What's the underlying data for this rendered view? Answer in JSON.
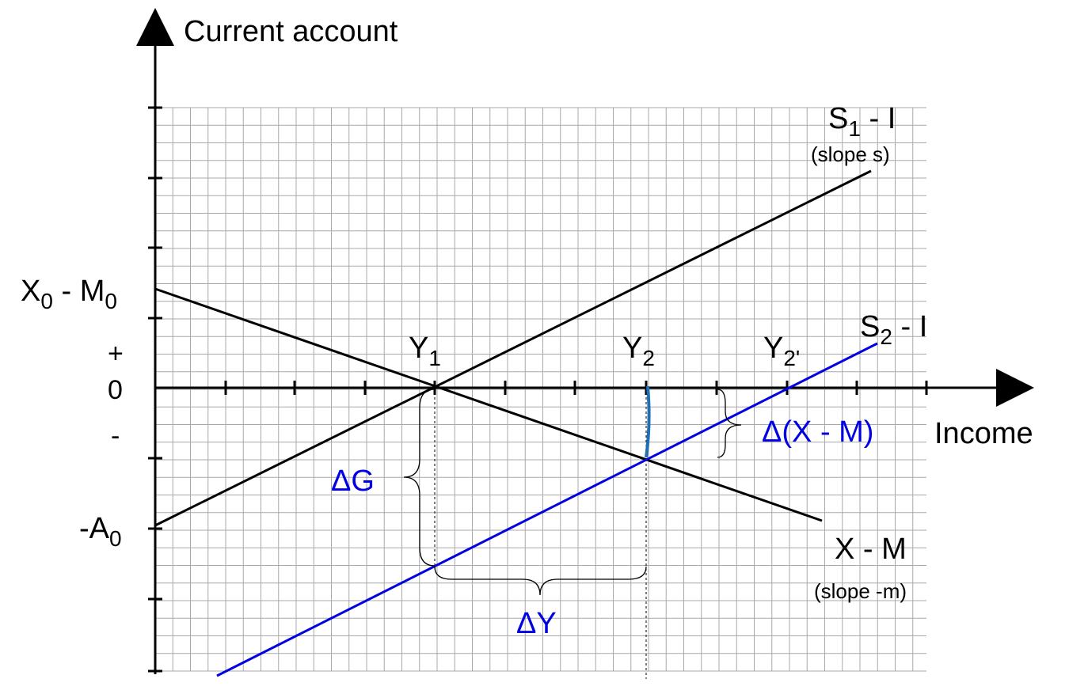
{
  "axes": {
    "y_label": "Current account",
    "x_label": "Income"
  },
  "y_ticks": {
    "plus": "+",
    "zero": "0",
    "minus": "-"
  },
  "labels": {
    "x0m0_main": "X",
    "x0m0_sub1": "0",
    "x0m0_mid": " - M",
    "x0m0_sub2": "0",
    "a0_main": "-A",
    "a0_sub": "0",
    "y1_main": "Y",
    "y1_sub": "1",
    "y2_main": "Y",
    "y2_sub": "2",
    "y2p_main": "Y",
    "y2p_sub": "2'",
    "s1_main": "S",
    "s1_sub": "1",
    "s1_rest": " - I",
    "s1_slope": "(slope s)",
    "s2_main": "S",
    "s2_sub": "2",
    "s2_rest": " - I",
    "xm_main": "X - M",
    "xm_slope": "(slope -m)",
    "delta_g": "ΔG",
    "delta_y": "ΔY",
    "delta_xm": "Δ(X - M)"
  },
  "colors": {
    "axis": "#000000",
    "grid": "#a8a8a8",
    "black_line": "#000000",
    "blue_line": "#0000e0",
    "blue_text": "#0000e0",
    "marker": "#1f6fb5"
  },
  "diagram_data": {
    "lines": [
      {
        "name": "S1 - I",
        "slope": "s",
        "color": "black"
      },
      {
        "name": "X - M",
        "slope": "-m",
        "color": "black"
      },
      {
        "name": "S2 - I",
        "color": "blue"
      }
    ],
    "equilibria": [
      "Y1",
      "Y2",
      "Y2'"
    ],
    "annotations": [
      "ΔG",
      "ΔY",
      "Δ(X - M)"
    ]
  }
}
